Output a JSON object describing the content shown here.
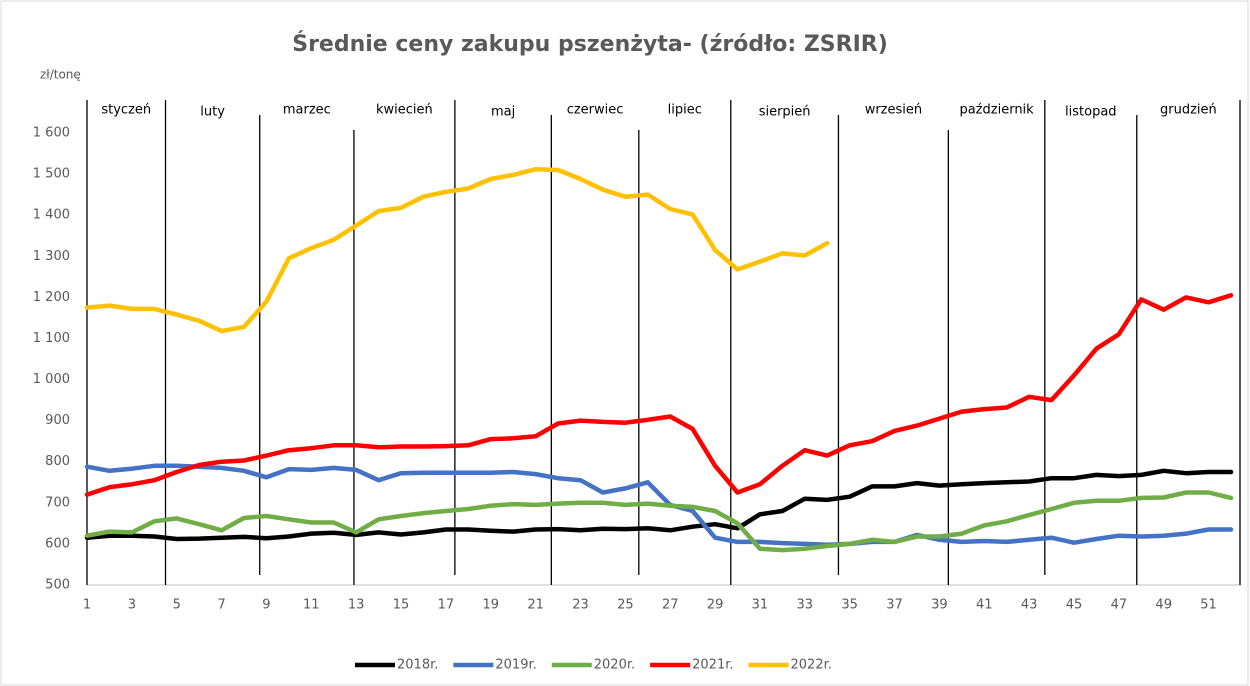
{
  "chart_data": {
    "type": "line",
    "title": "Średnie ceny zakupu pszenżyta- (źródło: ZSRIR)",
    "y_unit": "zł/tonę",
    "months": [
      "styczeń",
      "luty",
      "marzec",
      "kwiecień",
      "maj",
      "czerwiec",
      "lipiec",
      "sierpień",
      "wrzesień",
      "październik",
      "listopad",
      "grudzień"
    ],
    "month_dividers": [
      4.5,
      8.7,
      12.9,
      17.4,
      21.7,
      25.6,
      29.7,
      34.5,
      39.4,
      43.7,
      47.8
    ],
    "x": [
      1,
      2,
      3,
      4,
      5,
      6,
      7,
      8,
      9,
      10,
      11,
      12,
      13,
      14,
      15,
      16,
      17,
      18,
      19,
      20,
      21,
      22,
      23,
      24,
      25,
      26,
      27,
      28,
      29,
      30,
      31,
      32,
      33,
      34,
      35,
      36,
      37,
      38,
      39,
      40,
      41,
      42,
      43,
      44,
      45,
      46,
      47,
      48,
      49,
      50,
      51,
      52
    ],
    "xlim": [
      1,
      52
    ],
    "xticks": [
      1,
      3,
      5,
      7,
      9,
      11,
      13,
      15,
      17,
      19,
      21,
      23,
      25,
      27,
      29,
      31,
      33,
      35,
      37,
      39,
      41,
      43,
      45,
      47,
      49,
      51
    ],
    "ylim": [
      500,
      1600
    ],
    "yticks": [
      500,
      600,
      700,
      800,
      900,
      {
        "value": 1000,
        "label": "1 000"
      },
      {
        "value": 1100,
        "label": "1 100"
      },
      {
        "value": 1200,
        "label": "1 200"
      },
      {
        "value": 1300,
        "label": "1 300"
      },
      {
        "value": 1400,
        "label": "1 400"
      },
      {
        "value": 1500,
        "label": "1 500"
      },
      {
        "value": 1600,
        "label": "1 600"
      }
    ],
    "series": [
      {
        "name": "2018r.",
        "color": "#000000",
        "values": [
          615,
          620,
          620,
          618,
          612,
          613,
          615,
          617,
          614,
          618,
          625,
          627,
          622,
          628,
          623,
          628,
          635,
          635,
          632,
          630,
          635,
          636,
          633,
          637,
          636,
          638,
          633,
          642,
          648,
          638,
          672,
          680,
          710,
          707,
          715,
          740,
          740,
          748,
          742,
          745,
          748,
          750,
          752,
          760,
          760,
          768,
          765,
          768,
          778,
          772,
          775,
          775
        ]
      },
      {
        "name": "2019r.",
        "color": "#4472c4",
        "values": [
          788,
          778,
          783,
          790,
          790,
          788,
          785,
          778,
          762,
          782,
          780,
          785,
          780,
          755,
          772,
          773,
          773,
          773,
          773,
          775,
          770,
          760,
          755,
          725,
          735,
          750,
          695,
          680,
          615,
          605,
          605,
          602,
          600,
          598,
          600,
          605,
          605,
          622,
          610,
          605,
          607,
          605,
          610,
          615,
          603,
          612,
          620,
          618,
          620,
          625,
          635,
          635
        ]
      },
      {
        "name": "2020r.",
        "color": "#70ad47",
        "values": [
          620,
          630,
          628,
          655,
          662,
          648,
          633,
          663,
          668,
          660,
          652,
          652,
          628,
          660,
          668,
          675,
          680,
          685,
          693,
          697,
          695,
          698,
          700,
          700,
          695,
          698,
          693,
          690,
          680,
          650,
          588,
          585,
          588,
          595,
          600,
          610,
          605,
          618,
          618,
          625,
          645,
          655,
          670,
          685,
          700,
          705,
          705,
          712,
          713,
          725,
          725,
          712
        ]
      },
      {
        "name": "2021r.",
        "color": "#ff0000",
        "values": [
          720,
          738,
          745,
          755,
          775,
          792,
          800,
          803,
          815,
          828,
          833,
          840,
          840,
          835,
          837,
          837,
          838,
          840,
          855,
          857,
          862,
          893,
          900,
          897,
          895,
          902,
          910,
          880,
          790,
          725,
          745,
          790,
          828,
          815,
          840,
          850,
          875,
          888,
          905,
          922,
          928,
          932,
          958,
          950,
          1010,
          1075,
          1110,
          1195,
          1170,
          1200,
          1188,
          1205
        ]
      },
      {
        "name": "2022r.",
        "color": "#ffc000",
        "values": [
          1175,
          1180,
          1172,
          1172,
          1158,
          1143,
          1118,
          1128,
          1190,
          1295,
          1320,
          1340,
          1375,
          1410,
          1418,
          1445,
          1457,
          1465,
          1488,
          1498,
          1512,
          1510,
          1488,
          1462,
          1445,
          1450,
          1415,
          1402,
          1315,
          1268,
          1287,
          1307,
          1302,
          1332,
          null,
          null,
          null,
          null,
          null,
          null,
          null,
          null,
          null,
          null,
          null,
          null,
          null,
          null,
          null,
          null,
          null,
          null
        ]
      }
    ]
  }
}
